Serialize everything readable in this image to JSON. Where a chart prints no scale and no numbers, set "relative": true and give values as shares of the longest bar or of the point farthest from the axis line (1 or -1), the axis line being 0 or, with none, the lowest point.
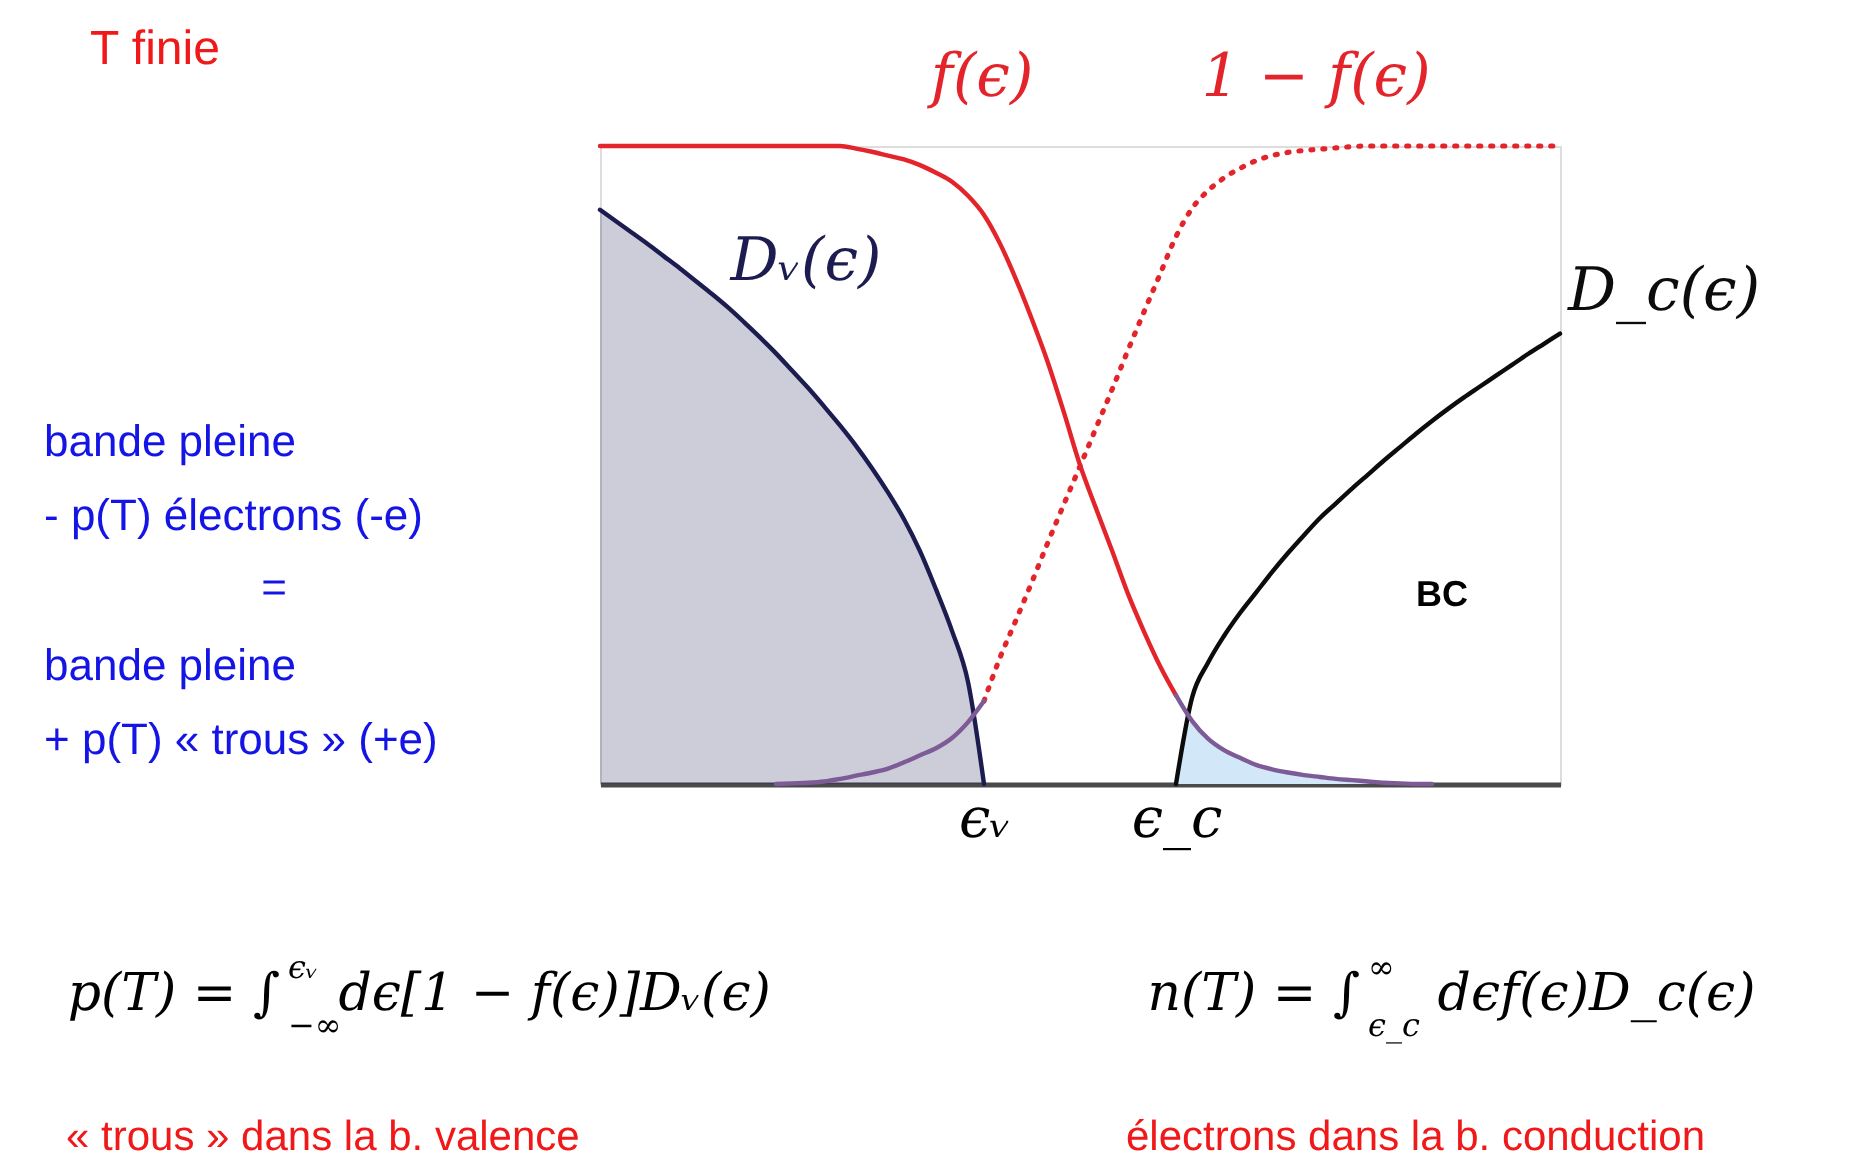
{
  "chart_data": {
    "type": "line",
    "relative": true,
    "title": "T finie",
    "categories": [
      null,
      null,
      null,
      null,
      null,
      null,
      null,
      null,
      null,
      null,
      null,
      null,
      null,
      null,
      null,
      null,
      null,
      null,
      null,
      null,
      null,
      null,
      null,
      null,
      "ϵᵥ",
      null,
      null,
      null,
      null,
      null,
      null,
      null,
      null,
      null,
      null,
      null,
      "ϵ_c",
      null,
      null,
      null,
      null,
      null,
      null,
      null,
      null,
      null,
      null,
      null,
      null,
      null,
      null,
      null,
      null,
      null,
      null,
      null,
      null,
      null,
      null,
      null,
      null
    ],
    "series": [
      {
        "name": "Dᵥ(ϵ)",
        "color": "#1c1c50",
        "values": [
          0.9,
          0.882,
          0.864,
          0.846,
          0.827,
          0.808,
          0.788,
          0.768,
          0.747,
          0.724,
          0.7,
          0.675,
          0.648,
          0.621,
          0.592,
          0.562,
          0.53,
          0.495,
          0.457,
          0.415,
          0.365,
          0.305,
          0.24,
          0.16,
          0,
          null,
          null,
          null,
          null,
          null,
          null,
          null,
          null,
          null,
          null,
          null,
          null,
          null,
          null,
          null,
          null,
          null,
          null,
          null,
          null,
          null,
          null,
          null,
          null,
          null,
          null,
          null,
          null,
          null,
          null,
          null,
          null,
          null,
          null,
          null,
          null
        ],
        "lower": [
          0,
          0,
          0,
          0,
          0,
          0,
          0,
          0,
          0,
          0,
          0,
          0,
          0,
          0,
          0,
          0,
          0,
          0,
          0,
          0,
          0,
          0,
          0,
          0,
          0,
          null,
          null,
          null,
          null,
          null,
          null,
          null,
          null,
          null,
          null,
          null,
          null,
          null,
          null,
          null,
          null,
          null,
          null,
          null,
          null,
          null,
          null,
          null,
          null,
          null,
          null,
          null,
          null,
          null,
          null,
          null,
          null,
          null,
          null,
          null,
          null
        ],
        "upper": [
          0.9,
          0.882,
          0.864,
          0.846,
          0.827,
          0.808,
          0.788,
          0.768,
          0.747,
          0.724,
          0.7,
          0.675,
          0.648,
          0.621,
          0.592,
          0.562,
          0.53,
          0.495,
          0.457,
          0.415,
          0.365,
          0.305,
          0.24,
          0.16,
          0,
          null,
          null,
          null,
          null,
          null,
          null,
          null,
          null,
          null,
          null,
          null,
          null,
          null,
          null,
          null,
          null,
          null,
          null,
          null,
          null,
          null,
          null,
          null,
          null,
          null,
          null,
          null,
          null,
          null,
          null,
          null,
          null,
          null,
          null,
          null,
          null
        ]
      },
      {
        "name": "D_c(ϵ)",
        "color": "#0c0c0c",
        "values": [
          null,
          null,
          null,
          null,
          null,
          null,
          null,
          null,
          null,
          null,
          null,
          null,
          null,
          null,
          null,
          null,
          null,
          null,
          null,
          null,
          null,
          null,
          null,
          null,
          null,
          null,
          null,
          null,
          null,
          null,
          null,
          null,
          null,
          null,
          null,
          null,
          0,
          0.135,
          0.19,
          0.232,
          0.268,
          0.3,
          0.332,
          0.362,
          0.39,
          0.417,
          0.44,
          0.463,
          0.485,
          0.507,
          0.528,
          0.549,
          0.569,
          0.588,
          0.606,
          0.623,
          0.64,
          0.657,
          0.674,
          0.69,
          0.706
        ]
      },
      {
        "name": "f(ϵ)",
        "color": "#e3242b",
        "values": [
          1,
          1,
          1,
          1,
          1,
          1,
          1,
          1,
          1,
          1,
          1,
          1,
          1,
          1,
          1,
          1,
          0.996,
          0.991,
          0.985,
          0.979,
          0.97,
          0.958,
          0.944,
          0.922,
          0.892,
          0.847,
          0.791,
          0.728,
          0.66,
          0.582,
          0.5,
          0.432,
          0.366,
          0.298,
          0.239,
          0.185,
          0.139,
          null,
          null,
          null,
          null,
          null,
          null,
          null,
          null,
          null,
          null,
          null,
          null,
          null,
          null,
          null,
          null,
          null,
          null,
          null,
          null,
          null,
          null,
          null,
          null
        ]
      },
      {
        "name": "1 − f(ϵ)",
        "color": "#e3242b",
        "line_style": "dotted",
        "values": [
          null,
          null,
          null,
          null,
          null,
          null,
          null,
          null,
          null,
          null,
          null,
          null,
          null,
          null,
          null,
          null,
          null,
          null,
          null,
          null,
          null,
          null,
          null,
          null,
          0.13,
          0.198,
          0.257,
          0.317,
          0.379,
          0.439,
          0.498,
          0.558,
          0.618,
          0.68,
          0.74,
          0.799,
          0.858,
          0.902,
          0.93,
          0.95,
          0.965,
          0.977,
          0.985,
          0.99,
          0.993,
          0.995,
          0.997,
          0.999,
          1,
          1,
          1,
          1,
          1,
          1,
          1,
          1,
          1,
          1,
          1,
          1,
          1
        ]
      },
      {
        "color": "#7d5b96",
        "values": [
          null,
          null,
          null,
          null,
          null,
          null,
          null,
          null,
          null,
          null,
          null,
          0,
          0.001,
          0.002,
          0.004,
          0.008,
          0.013,
          0.018,
          0.024,
          0.034,
          0.045,
          0.056,
          0.072,
          0.097,
          0.13,
          null,
          null,
          null,
          null,
          null,
          null,
          null,
          null,
          null,
          null,
          null,
          null,
          null,
          null,
          null,
          null,
          null,
          null,
          null,
          null,
          null,
          null,
          null,
          null,
          null,
          null,
          null,
          null,
          null,
          null,
          null,
          null,
          null,
          null,
          null,
          null
        ]
      },
      {
        "color": "#7d5b96",
        "values": [
          null,
          null,
          null,
          null,
          null,
          null,
          null,
          null,
          null,
          null,
          null,
          null,
          null,
          null,
          null,
          null,
          null,
          null,
          null,
          null,
          null,
          null,
          null,
          null,
          null,
          null,
          null,
          null,
          null,
          null,
          null,
          null,
          null,
          null,
          null,
          null,
          0.139,
          0.099,
          0.071,
          0.053,
          0.041,
          0.03,
          0.023,
          0.018,
          0.014,
          0.011,
          0.008,
          0.006,
          0.004,
          0.002,
          0.001,
          0,
          0,
          null,
          null,
          null,
          null,
          null,
          null,
          null,
          null
        ]
      },
      {
        "type": "area",
        "color": "#d2e8f8",
        "values": [
          null,
          null,
          null,
          null,
          null,
          null,
          null,
          null,
          null,
          null,
          null,
          null,
          null,
          null,
          null,
          null,
          null,
          null,
          null,
          null,
          null,
          null,
          null,
          null,
          null,
          null,
          null,
          null,
          null,
          null,
          null,
          null,
          null,
          null,
          null,
          null,
          0,
          0.099,
          0.071,
          0.053,
          0.041,
          0.03,
          0.023,
          0.018,
          0.014,
          0.011,
          0.008,
          0.006,
          0.004,
          0.002,
          0.001,
          0,
          null,
          null,
          null,
          null,
          null,
          null,
          null,
          null,
          null
        ]
      }
    ],
    "annotations": [
      "bande pleine",
      "- p(T) électrons (-e)",
      "=",
      "bande pleine",
      "+ p(T) « trous » (+e)",
      "BC",
      "p(T) = ∫$_{−∞}$$^{ϵᵥ}$ dϵ[1 − f(ϵ)]Dᵥ(ϵ)",
      "n(T) = ∫$_{ϵ_c}$$^{∞}$ dϵf(ϵ)D_c(ϵ)",
      "« trous » dans la b. valence",
      "électrons dans la b. conduction"
    ]
  }
}
